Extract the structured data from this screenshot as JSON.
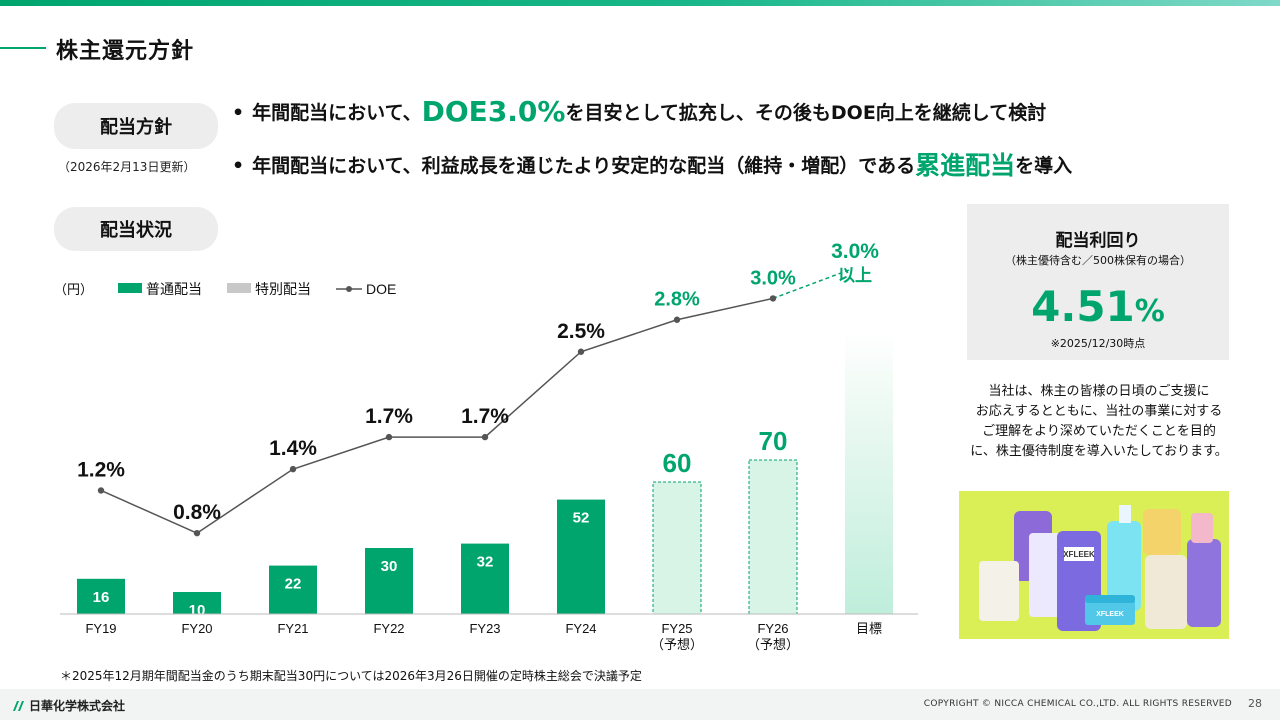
{
  "page": {
    "title": "株主還元方針"
  },
  "policy": {
    "label": "配当方針",
    "updated": "（2026年2月13日更新）",
    "bullet1": {
      "pre": "年間配当において、",
      "highlight": "DOE3.0%",
      "post": "を目安として拡充し、その後もDOE向上を継続して検討"
    },
    "bullet2": {
      "pre": "年間配当において、利益成長を通じたより安定的な配当（維持・増配）である",
      "highlight": "累進配当",
      "post": "を導入"
    }
  },
  "status": {
    "label": "配当状況"
  },
  "colors": {
    "accent": "#00a56e",
    "forecast_fill": "#d7f4e6",
    "target_light": "#e8f8f0",
    "special": "#c8c8c8",
    "line": "#555555"
  },
  "chart_data": {
    "type": "bar",
    "unit_label": "（円）",
    "legend": [
      {
        "label": "普通配当",
        "kind": "bar",
        "color": "#00a56e"
      },
      {
        "label": "特別配当",
        "kind": "bar",
        "color": "#c8c8c8"
      },
      {
        "label": "DOE",
        "kind": "line",
        "color": "#555555"
      }
    ],
    "categories": [
      {
        "line1": "FY19",
        "line2": ""
      },
      {
        "line1": "FY20",
        "line2": ""
      },
      {
        "line1": "FY21",
        "line2": ""
      },
      {
        "line1": "FY22",
        "line2": ""
      },
      {
        "line1": "FY23",
        "line2": ""
      },
      {
        "line1": "FY24",
        "line2": ""
      },
      {
        "line1": "FY25",
        "line2": "（予想）"
      },
      {
        "line1": "FY26",
        "line2": "（予想）"
      },
      {
        "line1": "目標",
        "line2": ""
      }
    ],
    "series": [
      {
        "name": "普通配当",
        "values": [
          16,
          10,
          22,
          30,
          32,
          52,
          60,
          70,
          null
        ],
        "forecast": [
          false,
          false,
          false,
          false,
          false,
          false,
          true,
          true,
          false
        ]
      },
      {
        "name": "DOE",
        "values": [
          1.2,
          0.8,
          1.4,
          1.7,
          1.7,
          2.5,
          2.8,
          3.0,
          3.0
        ],
        "labels": [
          "1.2%",
          "0.8%",
          "1.4%",
          "1.7%",
          "1.7%",
          "2.5%",
          "2.8%",
          "3.0%",
          "3.0%"
        ]
      }
    ],
    "target_note": "以上",
    "ylim": [
      0,
      100
    ]
  },
  "yield": {
    "title": "配当利回り",
    "subtitle": "（株主優待含む／500株保有の場合）",
    "value": "4.51",
    "unit": "%",
    "as_of": "※2025/12/30時点"
  },
  "benefit": {
    "lines": [
      "当社は、株主の皆様の日頃のご支援に",
      "お応えするとともに、当社の事業に対する",
      "ご理解をより深めていただくことを目的",
      "に、株主優待制度を導入いたしております。"
    ]
  },
  "photo": {
    "brand_text": "XFLEEK"
  },
  "footnote": "＊2025年12月期年間配当金のうち期末配当30円については2026年3月26日開催の定時株主総会で決議予定",
  "footer": {
    "company": "日華化学株式会社",
    "copyright": "COPYRIGHT © NICCA CHEMICAL CO.,LTD. ALL RIGHTS RESERVED",
    "page_number": "28"
  }
}
